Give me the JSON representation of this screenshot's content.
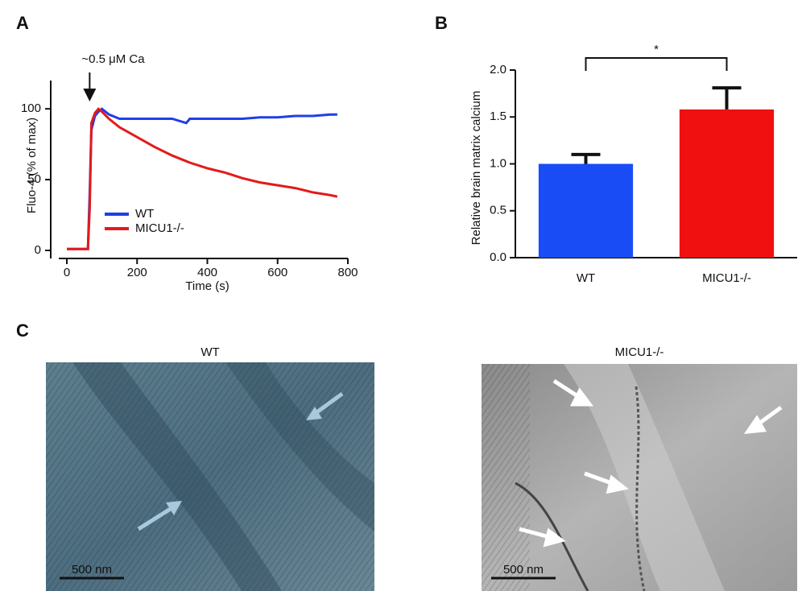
{
  "chart_data": [
    {
      "type": "line",
      "panel_label": "A",
      "ylabel": "Fluo-4 (% of max)",
      "xlabel": "Time (s)",
      "annotation": {
        "text": "~0.5 μM Ca",
        "x": 65
      },
      "x": [
        0,
        20,
        40,
        60,
        65,
        70,
        80,
        90,
        100,
        120,
        150,
        200,
        250,
        300,
        340,
        350,
        400,
        450,
        500,
        550,
        600,
        650,
        700,
        750,
        770
      ],
      "series": [
        {
          "name": "WT",
          "color": "#1f3fe8",
          "values": [
            1,
            1,
            1,
            1,
            40,
            85,
            95,
            98,
            100,
            96,
            93,
            93,
            93,
            93,
            90,
            93,
            93,
            93,
            93,
            94,
            94,
            95,
            95,
            96,
            96
          ]
        },
        {
          "name": "MICU1-/-",
          "color": "#e41a1a",
          "values": [
            1,
            1,
            1,
            1,
            30,
            90,
            97,
            100,
            98,
            93,
            87,
            80,
            73,
            67,
            63,
            62,
            58,
            55,
            51,
            48,
            46,
            44,
            41,
            39,
            38
          ]
        }
      ],
      "xlim": [
        0,
        800
      ],
      "xticks": [
        0,
        200,
        400,
        600,
        800
      ],
      "ylim": [
        0,
        120
      ],
      "yticks": [
        0,
        50,
        100
      ]
    },
    {
      "type": "bar",
      "panel_label": "B",
      "ylabel": "Relative brain matrix calcium",
      "categories": [
        "WT",
        "MICU1-/-"
      ],
      "values": [
        1.0,
        1.58
      ],
      "errors": [
        0.1,
        0.23
      ],
      "colors": [
        "#1a4cf5",
        "#f01010"
      ],
      "significance": "*",
      "ylim": [
        0,
        2.0
      ],
      "yticks": [
        {
          "value": 0,
          "label": "0.0"
        },
        {
          "value": 0.5,
          "label": "0.5"
        },
        {
          "value": 1,
          "label": "1.0"
        },
        {
          "value": 1.5,
          "label": "1.5"
        },
        {
          "value": 2,
          "label": "2.0"
        }
      ]
    }
  ],
  "micrographs": {
    "panel_label": "C",
    "items": [
      {
        "title": "WT",
        "scale_bar": "500 nm"
      },
      {
        "title": "MICU1-/-",
        "scale_bar": "500 nm"
      }
    ]
  }
}
